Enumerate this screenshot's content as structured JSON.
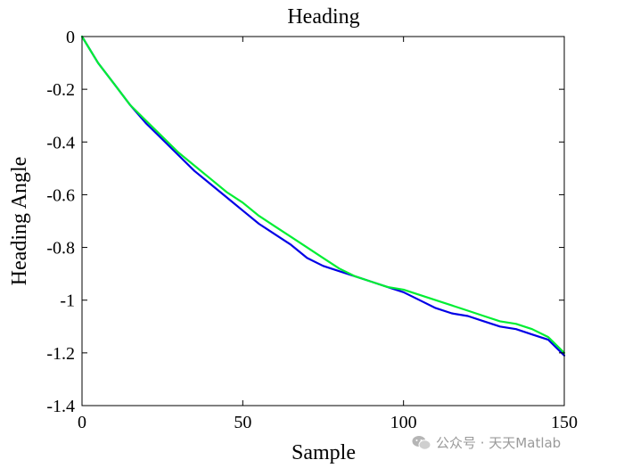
{
  "chart_data": {
    "type": "line",
    "title": "Heading",
    "xlabel": "Sample",
    "ylabel": "Heading Angle",
    "xlim": [
      0,
      150
    ],
    "ylim": [
      -1.4,
      0
    ],
    "xticks": [
      0,
      50,
      100,
      150
    ],
    "xtick_labels": [
      "0",
      "50",
      "100",
      "150"
    ],
    "yticks": [
      0,
      -0.2,
      -0.4,
      -0.6,
      -0.8,
      -1,
      -1.2,
      -1.4
    ],
    "ytick_labels": [
      "0",
      "-0.2",
      "-0.4",
      "-0.6",
      "-0.8",
      "-1",
      "-1.2",
      "-1.4"
    ],
    "grid": false,
    "series": [
      {
        "color": "#0000e6",
        "x": [
          0,
          5,
          10,
          15,
          20,
          25,
          30,
          35,
          40,
          45,
          50,
          55,
          60,
          65,
          70,
          75,
          80,
          85,
          90,
          95,
          100,
          105,
          110,
          115,
          120,
          125,
          130,
          135,
          140,
          145,
          150
        ],
        "values": [
          0,
          -0.1,
          -0.18,
          -0.26,
          -0.33,
          -0.39,
          -0.45,
          -0.51,
          -0.56,
          -0.61,
          -0.66,
          -0.71,
          -0.75,
          -0.79,
          -0.84,
          -0.87,
          -0.89,
          -0.91,
          -0.93,
          -0.95,
          -0.97,
          -1.0,
          -1.03,
          -1.05,
          -1.06,
          -1.08,
          -1.1,
          -1.11,
          -1.13,
          -1.15,
          -1.21
        ]
      },
      {
        "color": "#00ee33",
        "x": [
          0,
          5,
          10,
          15,
          20,
          25,
          30,
          35,
          40,
          45,
          50,
          55,
          60,
          65,
          70,
          75,
          80,
          85,
          90,
          95,
          100,
          105,
          110,
          115,
          120,
          125,
          130,
          135,
          140,
          145,
          150
        ],
        "values": [
          0,
          -0.1,
          -0.18,
          -0.26,
          -0.32,
          -0.38,
          -0.44,
          -0.49,
          -0.54,
          -0.59,
          -0.63,
          -0.68,
          -0.72,
          -0.76,
          -0.8,
          -0.84,
          -0.88,
          -0.91,
          -0.93,
          -0.95,
          -0.96,
          -0.98,
          -1.0,
          -1.02,
          -1.04,
          -1.06,
          -1.08,
          -1.09,
          -1.11,
          -1.14,
          -1.2
        ]
      }
    ]
  },
  "watermark": {
    "text": "公众号 · 天天Matlab",
    "icon": "wechat-icon"
  }
}
